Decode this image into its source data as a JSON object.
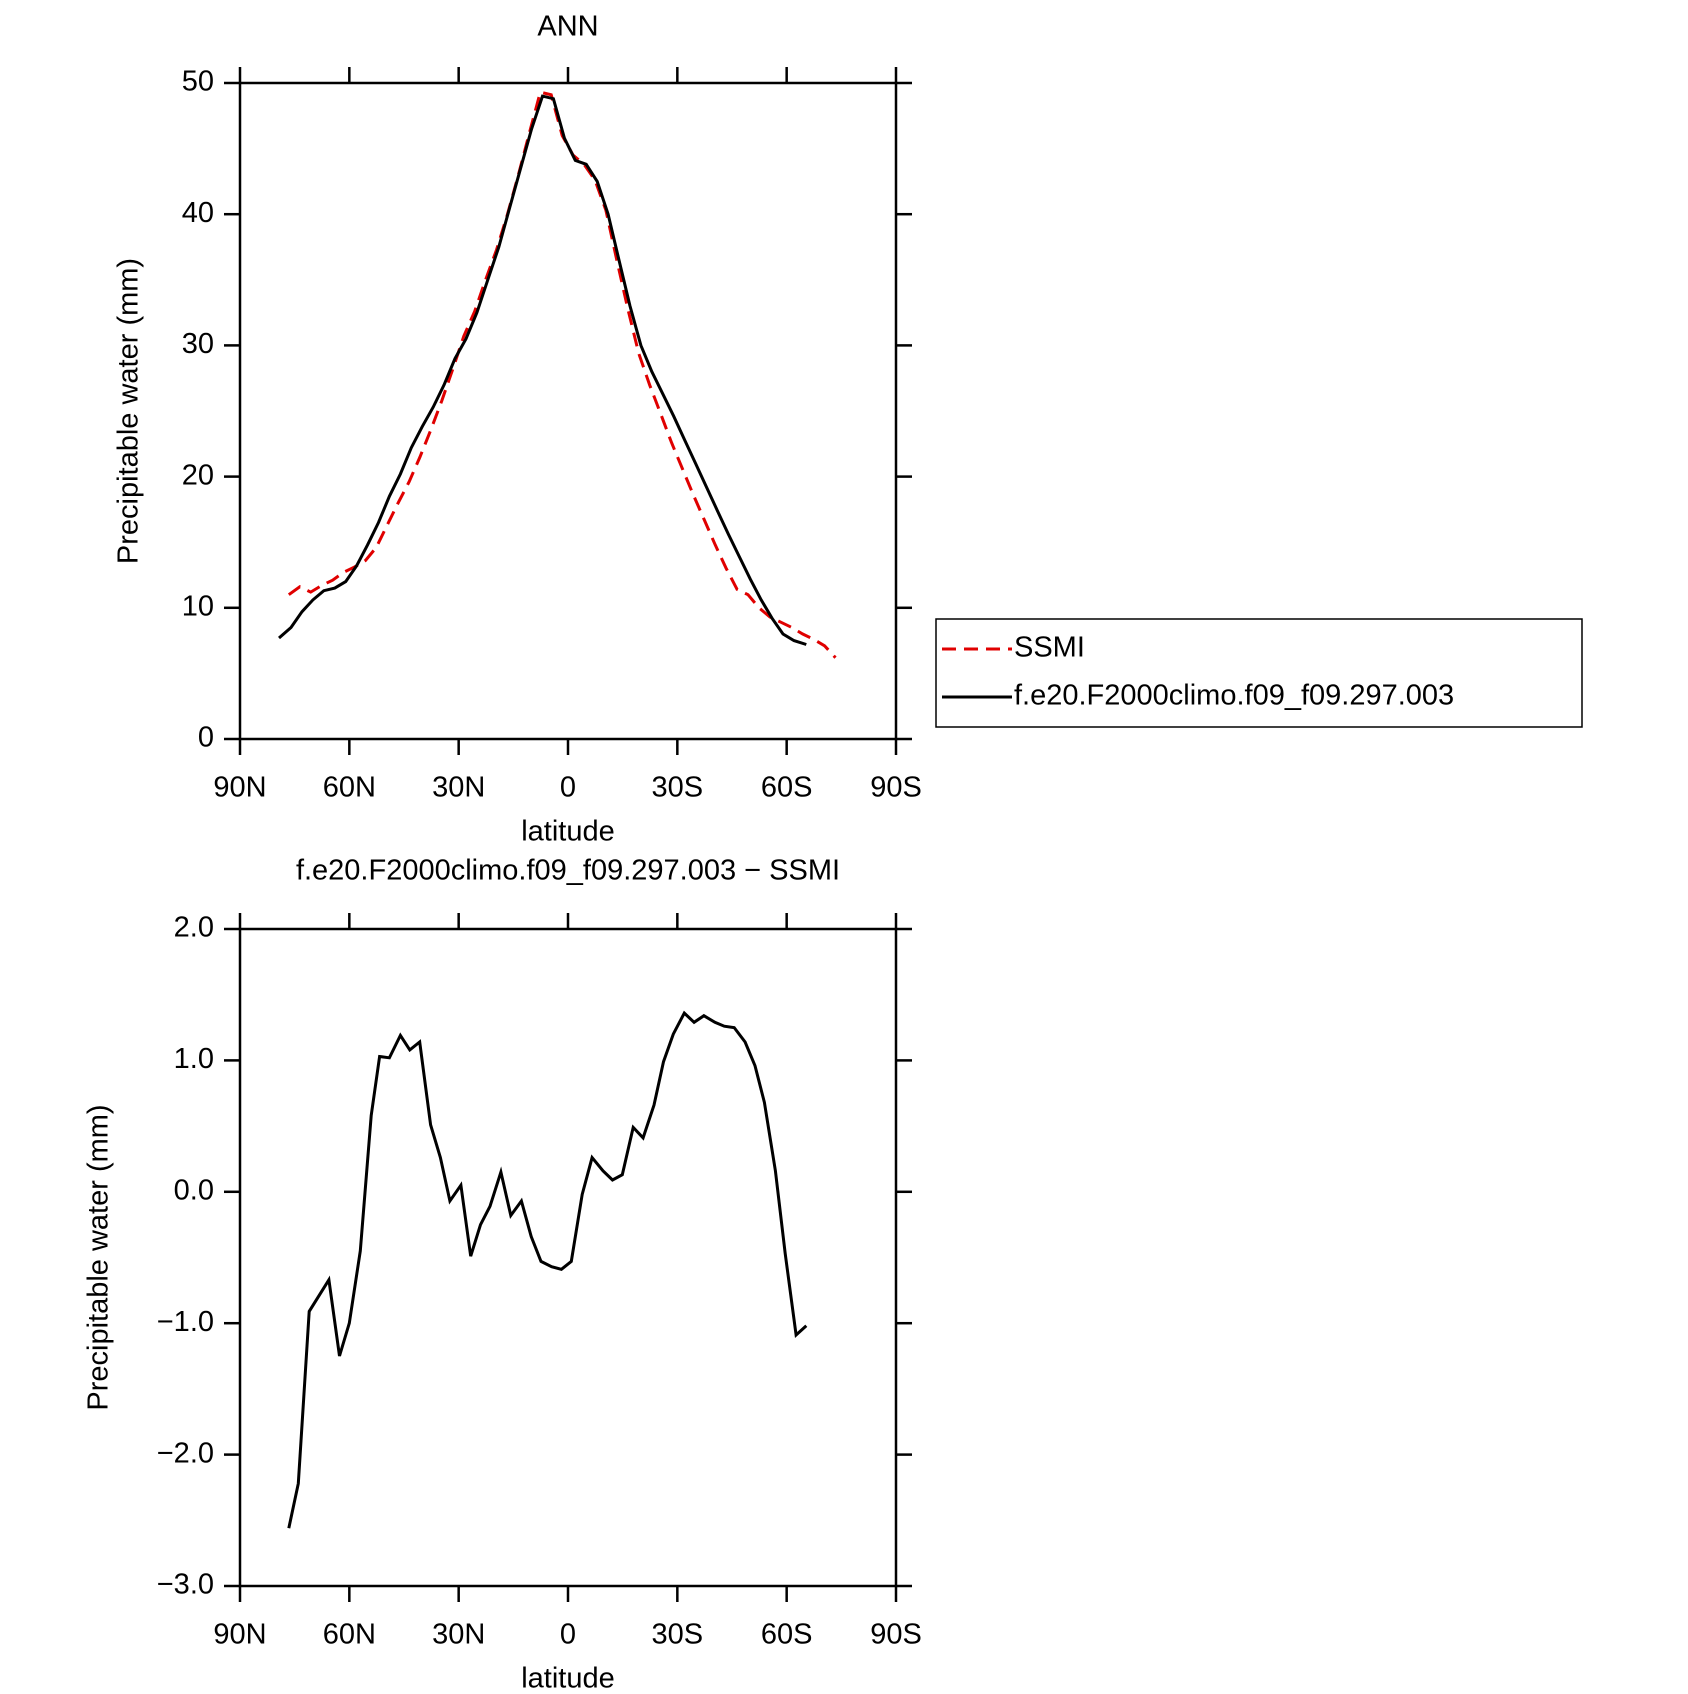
{
  "chart_data": [
    {
      "type": "line",
      "title": "ANN",
      "xlabel": "latitude",
      "ylabel": "Precipitable water (mm)",
      "xlim": [
        90,
        -90
      ],
      "xticks": [
        {
          "value": 90,
          "label": "90N"
        },
        {
          "value": 60,
          "label": "60N"
        },
        {
          "value": 30,
          "label": "30N"
        },
        0,
        {
          "value": -30,
          "label": "30S"
        },
        {
          "value": -60,
          "label": "60S"
        },
        {
          "value": -90,
          "label": "90S"
        }
      ],
      "ylim": [
        0,
        50
      ],
      "yticks": [
        0,
        10,
        20,
        30,
        40,
        50
      ],
      "legend": "right",
      "series": [
        {
          "name": "SSMI",
          "color": "#e00000",
          "dash": true,
          "x": [
            76.6,
            73.6,
            70.6,
            67.6,
            64.6,
            61.6,
            58.6,
            55.6,
            52.6,
            49.6,
            46.6,
            43.6,
            40.6,
            37.6,
            34.6,
            31.6,
            28.6,
            25.6,
            22.6,
            19.6,
            16.6,
            13.6,
            10.6,
            7.6,
            4.6,
            1.6,
            -1.4,
            -4.4,
            -7.4,
            -10.4,
            -13.4,
            -16.4,
            -19.4,
            -22.4,
            -25.4,
            -28.4,
            -31.4,
            -34.4,
            -37.4,
            -40.4,
            -43.4,
            -46.4,
            -49.4,
            -52.4,
            -55.4,
            -58.4,
            -61.4,
            -64.4,
            -67.4,
            -70.4,
            -73.4
          ],
          "values": [
            11.0,
            11.6,
            11.2,
            11.7,
            12.1,
            12.7,
            13.1,
            13.6,
            14.6,
            16.3,
            18.0,
            19.6,
            21.5,
            23.6,
            25.8,
            28.2,
            30.7,
            32.6,
            35.0,
            37.3,
            40.0,
            43.0,
            46.2,
            49.3,
            49.1,
            46.0,
            44.5,
            43.8,
            42.6,
            40.3,
            36.5,
            32.8,
            29.4,
            27.0,
            24.8,
            22.6,
            20.6,
            18.6,
            16.7,
            14.8,
            13.0,
            11.4,
            11.0,
            10.0,
            9.3,
            8.9,
            8.5,
            8.0,
            7.6,
            7.1,
            6.2
          ]
        },
        {
          "name": "f.e20.F2000climo.f09_f09.297.003",
          "color": "#000000",
          "dash": false,
          "x": [
            79.3,
            76,
            73,
            70,
            67,
            64,
            61,
            58,
            55,
            52,
            49,
            46,
            43,
            40,
            37,
            34,
            31,
            28,
            25,
            22,
            19,
            16,
            13,
            10,
            7,
            4,
            1,
            -2,
            -5,
            -8,
            -11,
            -14,
            -17,
            -20,
            -23,
            -26,
            -29,
            -32,
            -35,
            -38,
            -41,
            -44,
            -47,
            -50,
            -53,
            -56,
            -59,
            -62,
            -65.4
          ],
          "values": [
            7.7,
            8.5,
            9.7,
            10.6,
            11.3,
            11.5,
            12.0,
            13.2,
            14.8,
            16.5,
            18.5,
            20.2,
            22.2,
            23.8,
            25.3,
            27.0,
            29.0,
            30.5,
            32.5,
            35.0,
            37.5,
            40.5,
            43.5,
            46.5,
            49.0,
            48.8,
            45.8,
            44.1,
            43.8,
            42.5,
            40.0,
            36.5,
            33.0,
            30.0,
            28.0,
            26.3,
            24.6,
            22.8,
            21.0,
            19.2,
            17.4,
            15.6,
            13.9,
            12.2,
            10.6,
            9.2,
            8.0,
            7.5,
            7.2
          ]
        }
      ]
    },
    {
      "type": "line",
      "title": "f.e20.F2000climo.f09_f09.297.003 − SSMI",
      "xlabel": "latitude",
      "ylabel": "Precipitable water (mm)",
      "xlim": [
        90,
        -90
      ],
      "xticks": [
        {
          "value": 90,
          "label": "90N"
        },
        {
          "value": 60,
          "label": "60N"
        },
        {
          "value": 30,
          "label": "30N"
        },
        0,
        {
          "value": -30,
          "label": "30S"
        },
        {
          "value": -60,
          "label": "60S"
        },
        {
          "value": -90,
          "label": "90S"
        }
      ],
      "ylim": [
        -3,
        2
      ],
      "yticks": [
        {
          "value": -3,
          "label": "−3.0"
        },
        {
          "value": -2,
          "label": "−2.0"
        },
        {
          "value": -1,
          "label": "−1.0"
        },
        {
          "value": 0,
          "label": "0.0"
        },
        {
          "value": 1,
          "label": "1.0"
        },
        {
          "value": 2,
          "label": "2.0"
        }
      ],
      "series": [
        {
          "color": "#000000",
          "dash": false,
          "x": [
            76.6,
            74,
            71,
            65.6,
            62.7,
            60,
            57,
            54,
            51.7,
            49,
            46,
            43.4,
            40.7,
            37.7,
            35,
            32.4,
            29.4,
            26.7,
            24,
            21.4,
            18.4,
            15.7,
            12.8,
            10.1,
            7.4,
            4.5,
            1.8,
            -0.9,
            -3.9,
            -6.6,
            -9.6,
            -12.2,
            -14.9,
            -17.9,
            -20.6,
            -23.6,
            -26.2,
            -28.9,
            -31.9,
            -34.6,
            -37.3,
            -40.3,
            -42.9,
            -45.6,
            -48.6,
            -51.3,
            -53.9,
            -56.9,
            -59.6,
            -62.6,
            -65.4
          ],
          "values": [
            -2.56,
            -2.22,
            -0.91,
            -0.67,
            -1.25,
            -1.0,
            -0.45,
            0.58,
            1.03,
            1.02,
            1.19,
            1.08,
            1.14,
            0.51,
            0.26,
            -0.07,
            0.05,
            -0.49,
            -0.25,
            -0.11,
            0.15,
            -0.18,
            -0.07,
            -0.34,
            -0.53,
            -0.57,
            -0.59,
            -0.53,
            -0.02,
            0.26,
            0.16,
            0.09,
            0.13,
            0.49,
            0.41,
            0.66,
            0.99,
            1.2,
            1.36,
            1.29,
            1.34,
            1.29,
            1.26,
            1.25,
            1.14,
            0.96,
            0.68,
            0.16,
            -0.47,
            -1.09,
            -1.02
          ]
        }
      ]
    }
  ]
}
